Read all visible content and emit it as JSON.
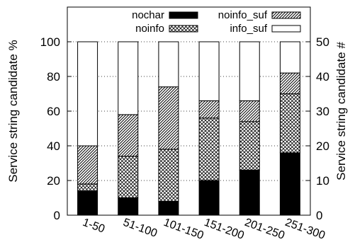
{
  "chart_data": {
    "type": "bar",
    "stacked": true,
    "categories": [
      "1-50",
      "51-100",
      "101-150",
      "151-200",
      "201-250",
      "251-300"
    ],
    "series": [
      {
        "name": "nochar",
        "pattern": "solid",
        "values": [
          14,
          10,
          8,
          20,
          26,
          36
        ]
      },
      {
        "name": "noinfo",
        "pattern": "crosshatch",
        "values": [
          4,
          24,
          30,
          36,
          28,
          34
        ]
      },
      {
        "name": "noinfo_suf",
        "pattern": "diagonal",
        "values": [
          22,
          24,
          36,
          10,
          12,
          12
        ]
      },
      {
        "name": "info_suf",
        "pattern": "white",
        "values": [
          60,
          42,
          26,
          34,
          34,
          18
        ]
      }
    ],
    "ylabel": "Service string candidate %",
    "ylabel_right": "Service string candidate #",
    "ylim": [
      0,
      120
    ],
    "yticks": [
      0,
      20,
      40,
      60,
      80,
      100
    ],
    "ylim_right": [
      0,
      60
    ],
    "yticks_right": [
      0,
      10,
      20,
      30,
      40,
      50
    ],
    "grid": "horizontal dotted",
    "legend": "top, two columns",
    "colors": {
      "ink": "#000000",
      "background": "#ffffff"
    }
  }
}
